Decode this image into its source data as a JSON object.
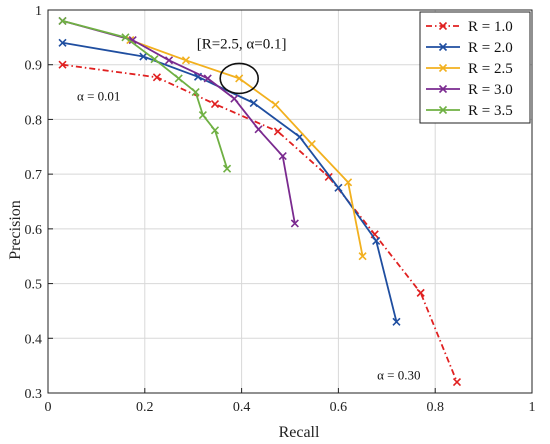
{
  "chart_data": {
    "type": "line",
    "title": "",
    "xlabel": "Recall",
    "ylabel": "Precision",
    "xlim": [
      0,
      1
    ],
    "ylim": [
      0.3,
      1
    ],
    "x_ticks": [
      "0",
      "0.2",
      "0.4",
      "0.6",
      "0.8",
      "1"
    ],
    "y_ticks": [
      "0.3",
      "0.4",
      "0.5",
      "0.6",
      "0.7",
      "0.8",
      "0.9",
      "1"
    ],
    "grid": true,
    "legend_position": "top-right",
    "series": [
      {
        "name": "R = 1.0",
        "color": "#e02020",
        "line_style": "dash-dot",
        "marker": "x",
        "x": [
          0.03,
          0.225,
          0.345,
          0.475,
          0.58,
          0.675,
          0.77,
          0.845
        ],
        "y": [
          0.9,
          0.877,
          0.828,
          0.778,
          0.695,
          0.59,
          0.483,
          0.32
        ]
      },
      {
        "name": "R = 2.0",
        "color": "#1f4ea0",
        "line_style": "solid",
        "marker": "x",
        "x": [
          0.03,
          0.197,
          0.31,
          0.425,
          0.52,
          0.6,
          0.678,
          0.72
        ],
        "y": [
          0.94,
          0.915,
          0.878,
          0.83,
          0.768,
          0.675,
          0.578,
          0.43
        ]
      },
      {
        "name": "R = 2.5",
        "color": "#f2b01e",
        "line_style": "solid",
        "marker": "x",
        "x": [
          0.17,
          0.285,
          0.395,
          0.47,
          0.545,
          0.62,
          0.65
        ],
        "y": [
          0.945,
          0.908,
          0.875,
          0.827,
          0.755,
          0.685,
          0.55
        ]
      },
      {
        "name": "R = 3.0",
        "color": "#7a2a8f",
        "line_style": "solid",
        "marker": "x",
        "x": [
          0.03,
          0.175,
          0.25,
          0.33,
          0.385,
          0.435,
          0.485,
          0.51
        ],
        "y": [
          0.98,
          0.945,
          0.908,
          0.875,
          0.838,
          0.782,
          0.733,
          0.61
        ]
      },
      {
        "name": "R = 3.5",
        "color": "#6fb043",
        "line_style": "solid",
        "marker": "x",
        "x": [
          0.03,
          0.16,
          0.22,
          0.27,
          0.305,
          0.32,
          0.345,
          0.37
        ],
        "y": [
          0.98,
          0.95,
          0.91,
          0.875,
          0.85,
          0.808,
          0.78,
          0.71
        ]
      }
    ],
    "annotations": [
      {
        "text": "α = 0.01",
        "x": 0.06,
        "y": 0.835
      },
      {
        "text": "[R=2.5, α=0.1]",
        "x": 0.4,
        "y": 0.93,
        "circle_at": [
          0.395,
          0.875
        ]
      },
      {
        "text": "α = 0.30",
        "x": 0.68,
        "y": 0.325
      }
    ]
  }
}
